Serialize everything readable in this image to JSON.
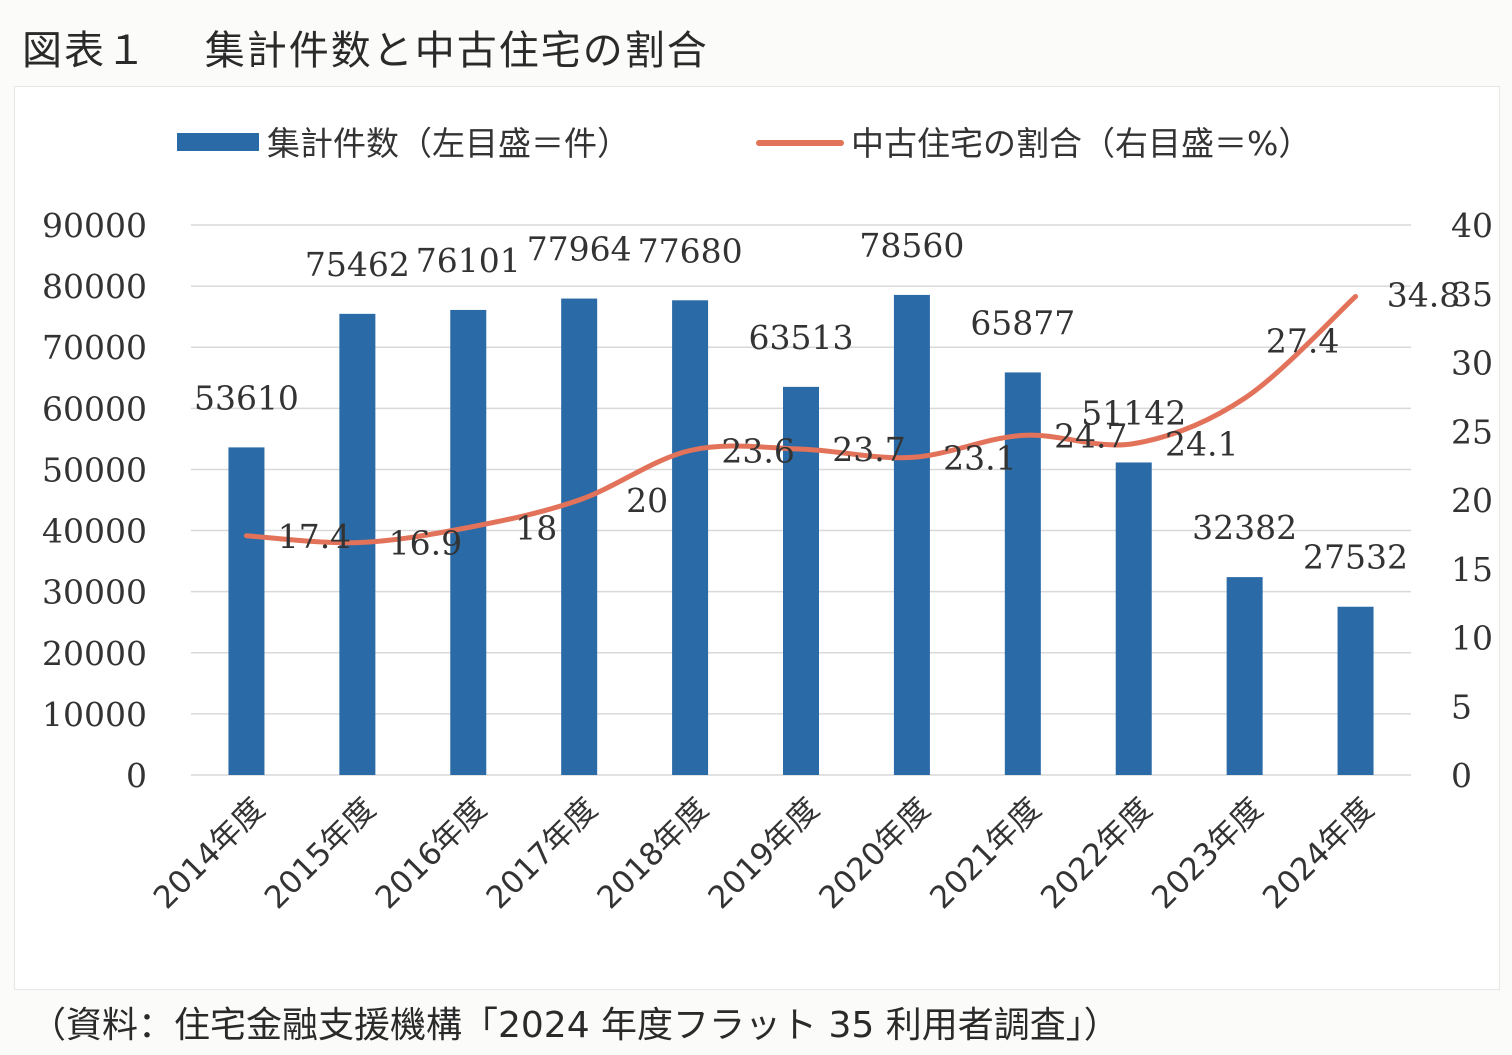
{
  "figure_title": "図表１　 集計件数と中古住宅の割合",
  "source_note": "（資料：住宅金融支援機構「2024 年度フラット 35 利用者調査」）",
  "colors": {
    "bar": "#2a6aa6",
    "line": "#e2735a",
    "grid": "#d9d9d9",
    "text": "#333333"
  },
  "chart_data": {
    "type": "bar+line",
    "categories": [
      "2014年度",
      "2015年度",
      "2016年度",
      "2017年度",
      "2018年度",
      "2019年度",
      "2020年度",
      "2021年度",
      "2022年度",
      "2023年度",
      "2024年度"
    ],
    "series": [
      {
        "name": "集計件数（左目盛＝件）",
        "type": "bar",
        "axis": "left",
        "values": [
          53610,
          75462,
          76101,
          77964,
          77680,
          63513,
          78560,
          65877,
          51142,
          32382,
          27532
        ]
      },
      {
        "name": "中古住宅の割合（右目盛＝%）",
        "type": "line",
        "axis": "right",
        "values": [
          17.4,
          16.9,
          18,
          20,
          23.6,
          23.7,
          23.1,
          24.7,
          24.1,
          27.4,
          34.8
        ]
      }
    ],
    "bar_labels": [
      "53610",
      "75462",
      "76101",
      "77964",
      "77680",
      "63513",
      "78560",
      "65877",
      "51142",
      "32382",
      "27532"
    ],
    "line_labels": [
      "17.4",
      "16.9",
      "18",
      "20",
      "23.6",
      "23.7",
      "23.1",
      "24.7",
      "24.1",
      "27.4",
      "34.8"
    ],
    "y_left": {
      "ylim": [
        0,
        90000
      ],
      "ticks": [
        "0",
        "10000",
        "20000",
        "30000",
        "40000",
        "50000",
        "60000",
        "70000",
        "80000",
        "90000"
      ]
    },
    "y_right": {
      "ylim": [
        0,
        40
      ],
      "ticks": [
        "0",
        "5",
        "10",
        "15",
        "20",
        "25",
        "30",
        "35",
        "40"
      ]
    },
    "grid": true,
    "legend_position": "top"
  }
}
